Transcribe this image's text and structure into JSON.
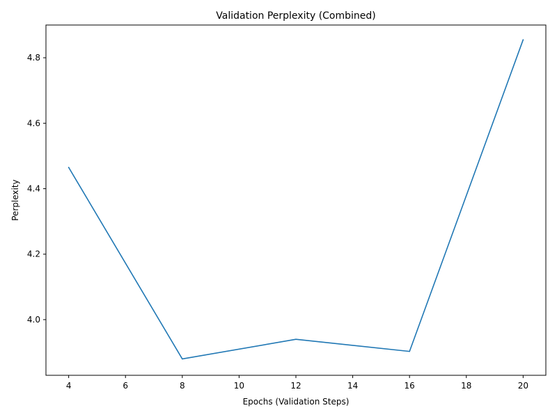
{
  "chart_data": {
    "type": "line",
    "title": "Validation Perplexity (Combined)",
    "xlabel": "Epochs (Validation Steps)",
    "ylabel": "Perplexity",
    "xlim": [
      3.2,
      20.8
    ],
    "ylim": [
      3.83,
      4.9
    ],
    "xticks": [
      4,
      6,
      8,
      10,
      12,
      14,
      16,
      18,
      20
    ],
    "xtick_labels": [
      "4",
      "6",
      "8",
      "10",
      "12",
      "14",
      "16",
      "18",
      "20"
    ],
    "yticks": [
      4.0,
      4.2,
      4.4,
      4.6,
      4.8
    ],
    "ytick_labels": [
      "4.0",
      "4.2",
      "4.4",
      "4.6",
      "4.8"
    ],
    "grid": false,
    "legend": "none",
    "series": [
      {
        "color": "#1f77b4",
        "x": [
          4,
          8,
          12,
          16,
          20
        ],
        "y": [
          4.465,
          3.88,
          3.94,
          3.903,
          4.855
        ]
      }
    ]
  }
}
